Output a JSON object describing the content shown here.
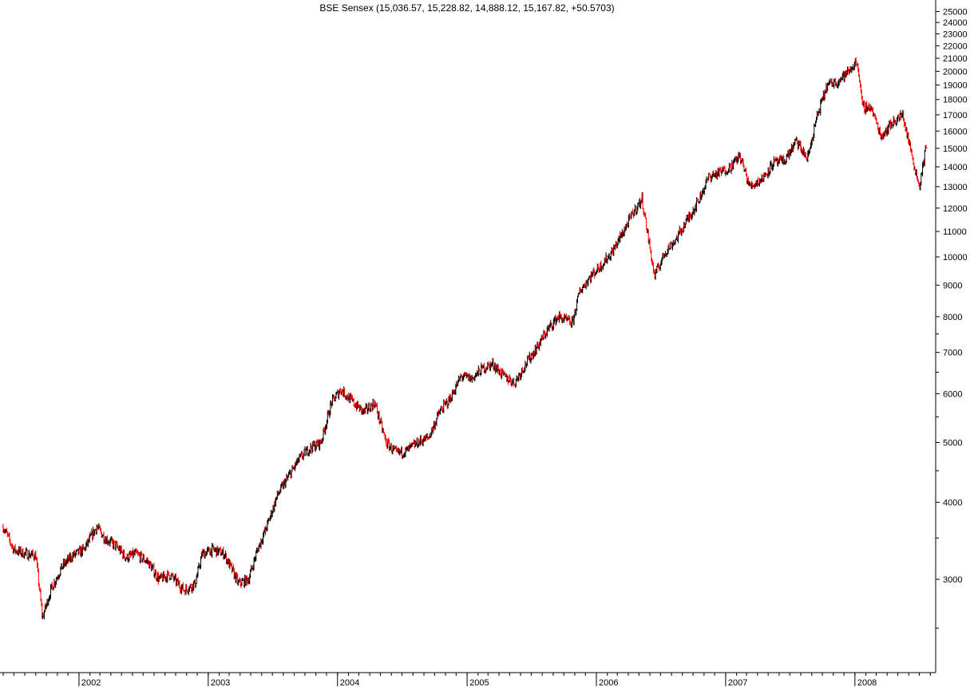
{
  "chart_data": {
    "type": "line",
    "title": "BSE Sensex (15,036.57, 15,228.82, 14,888.12, 15,167.82, +50.5703)",
    "style": "ohlc-bars",
    "scale": "log",
    "grid": false,
    "ylim": [
      2000,
      25500
    ],
    "xlim": [
      "2001-06-01",
      "2008-07-20"
    ],
    "y_ticks": [
      3000,
      4000,
      5000,
      6000,
      7000,
      8000,
      9000,
      10000,
      11000,
      12000,
      13000,
      14000,
      15000,
      16000,
      17000,
      18000,
      19000,
      20000,
      21000,
      22000,
      23000,
      24000,
      25000
    ],
    "y_minor_ticks": [
      2500,
      3500,
      4500,
      5500,
      6500,
      7500
    ],
    "x_ticks": [
      {
        "label": "2002",
        "date": "2002-01-01"
      },
      {
        "label": "2003",
        "date": "2003-01-01"
      },
      {
        "label": "2004",
        "date": "2004-01-01"
      },
      {
        "label": "2005",
        "date": "2005-01-01"
      },
      {
        "label": "2006",
        "date": "2006-01-01"
      },
      {
        "label": "2007",
        "date": "2007-01-01"
      },
      {
        "label": "2008",
        "date": "2008-01-01"
      }
    ],
    "up_color": "#000000",
    "down_color": "#ff0000",
    "series": [
      {
        "x": [
          "2001-06-01",
          "2001-07-01",
          "2001-08-01",
          "2001-09-01",
          "2001-09-20",
          "2001-10-15",
          "2001-11-15",
          "2001-12-15",
          "2002-01-15",
          "2002-02-20",
          "2002-03-15",
          "2002-04-15",
          "2002-05-15",
          "2002-06-10",
          "2002-07-15",
          "2002-08-15",
          "2002-09-15",
          "2002-10-25",
          "2002-11-25",
          "2002-12-15",
          "2003-01-15",
          "2003-02-15",
          "2003-03-28",
          "2003-04-25",
          "2003-05-20",
          "2003-06-15",
          "2003-07-15",
          "2003-08-15",
          "2003-09-15",
          "2003-10-15",
          "2003-11-15",
          "2003-12-15",
          "2004-01-10",
          "2004-02-15",
          "2004-03-15",
          "2004-04-15",
          "2004-05-17",
          "2004-06-15",
          "2004-07-15",
          "2004-08-15",
          "2004-09-15",
          "2004-10-15",
          "2004-11-15",
          "2004-12-15",
          "2005-01-15",
          "2005-02-15",
          "2005-03-15",
          "2005-04-15",
          "2005-05-15",
          "2005-06-15",
          "2005-07-15",
          "2005-08-15",
          "2005-09-15",
          "2005-10-25",
          "2005-11-15",
          "2005-12-15",
          "2006-01-15",
          "2006-02-15",
          "2006-03-15",
          "2006-04-15",
          "2006-05-10",
          "2006-06-14",
          "2006-07-15",
          "2006-08-15",
          "2006-09-15",
          "2006-10-15",
          "2006-11-15",
          "2006-12-15",
          "2007-01-15",
          "2007-02-10",
          "2007-03-10",
          "2007-04-15",
          "2007-05-15",
          "2007-06-15",
          "2007-07-20",
          "2007-08-20",
          "2007-09-15",
          "2007-10-15",
          "2007-11-15",
          "2007-12-15",
          "2008-01-08",
          "2008-01-22",
          "2008-02-15",
          "2008-03-15",
          "2008-04-15",
          "2008-05-15",
          "2008-06-15",
          "2008-07-01",
          "2008-07-20"
        ],
        "values": [
          3650,
          3350,
          3300,
          3280,
          2600,
          2900,
          3150,
          3280,
          3350,
          3650,
          3500,
          3400,
          3250,
          3300,
          3200,
          3000,
          3050,
          2880,
          2950,
          3300,
          3350,
          3300,
          2950,
          3000,
          3350,
          3650,
          4100,
          4400,
          4700,
          4900,
          5000,
          5800,
          6100,
          5800,
          5600,
          5800,
          5000,
          4800,
          4850,
          5000,
          5100,
          5600,
          5900,
          6400,
          6350,
          6600,
          6700,
          6400,
          6250,
          6700,
          7100,
          7600,
          8000,
          7800,
          8800,
          9300,
          9700,
          10200,
          10900,
          11800,
          12400,
          9300,
          10200,
          10700,
          11500,
          12300,
          13500,
          13700,
          14000,
          14600,
          13000,
          13400,
          14200,
          14300,
          15400,
          14400,
          16800,
          19000,
          19300,
          20000,
          20800,
          17500,
          17500,
          15700,
          16500,
          17000,
          14200,
          13000,
          15100
        ],
        "name": ""
      }
    ]
  }
}
